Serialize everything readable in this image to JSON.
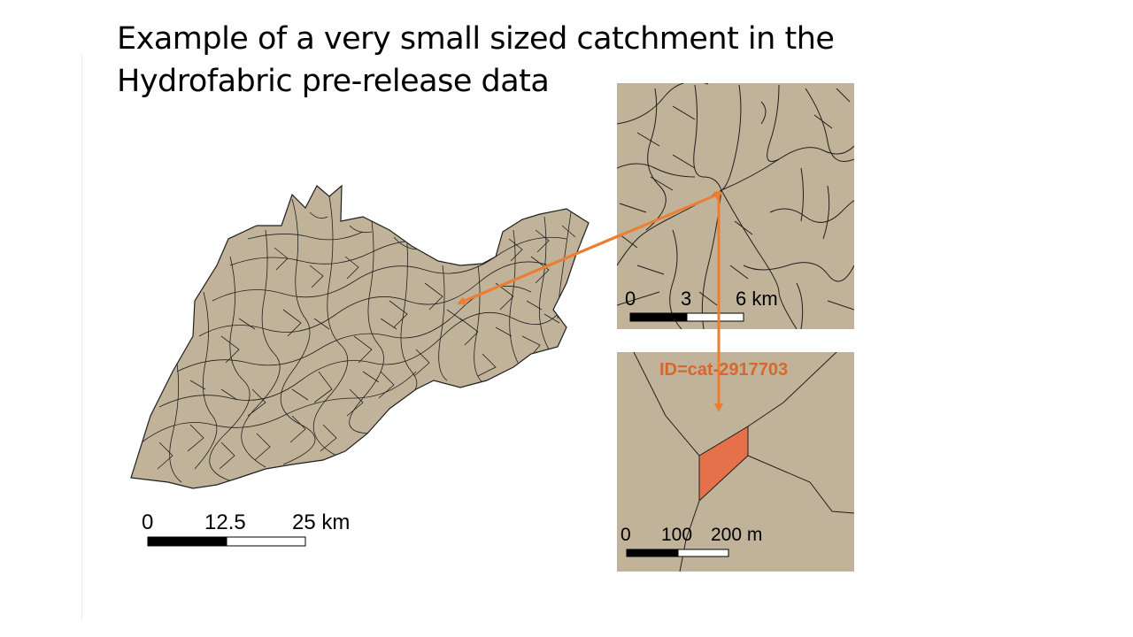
{
  "slide": {
    "title_line1": "Example of a very small sized catchment in the",
    "title_line2": "Hydrofabric pre-release data"
  },
  "main_map": {
    "fill_color": "#c0b399",
    "boundary_color": "#1f1f1f",
    "scale_bar": {
      "labels": [
        "0",
        "12.5",
        "25 km"
      ]
    }
  },
  "inset_medium": {
    "scale_bar": {
      "labels": [
        "0",
        "3",
        "6 km"
      ]
    }
  },
  "inset_small": {
    "highlight_color": "#e5704a",
    "catchment_label": "ID=cat-2917703",
    "label_color": "#d9672c",
    "scale_bar": {
      "labels": [
        "0",
        "100",
        "200 m"
      ]
    }
  },
  "arrows": {
    "color": "#ed7d31"
  }
}
